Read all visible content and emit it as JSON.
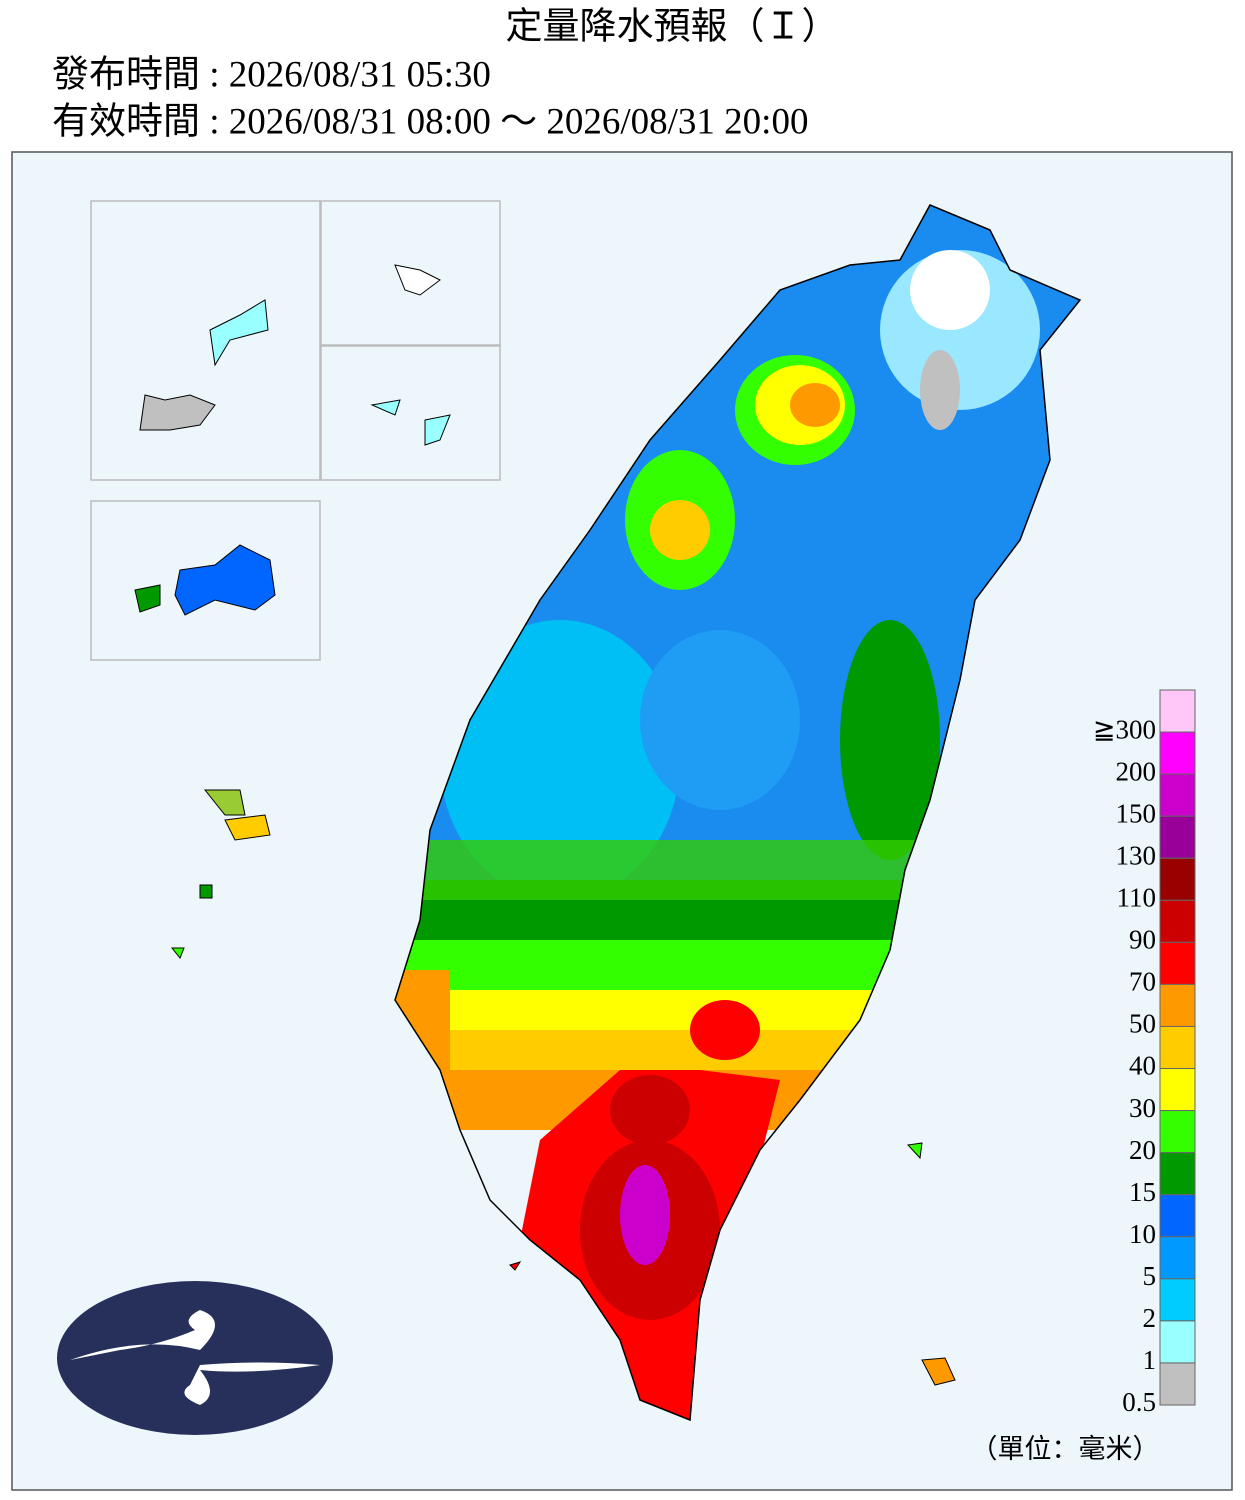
{
  "header": {
    "title": "定量降水預報（Ｉ）",
    "issue_time": "發布時間 : 2026/08/31 05:30",
    "valid_time": "有效時間 : 2026/08/31 08:00 ～ 2026/08/31 20:00"
  },
  "legend": {
    "labels": [
      "≧300",
      "200",
      "150",
      "130",
      "110",
      "90",
      "70",
      "50",
      "40",
      "30",
      "20",
      "15",
      "10",
      "5",
      "2",
      "1",
      "0.5"
    ],
    "colors": [
      "#ffc6f8",
      "#ff00ff",
      "#cc00cc",
      "#990099",
      "#990000",
      "#cc0000",
      "#ff0000",
      "#ff9900",
      "#ffcc00",
      "#ffff00",
      "#33ff00",
      "#009900",
      "#0066ff",
      "#0099ff",
      "#00ccff",
      "#99ffff",
      "#c0c0c0"
    ],
    "unit": "（單位：毫米）"
  }
}
